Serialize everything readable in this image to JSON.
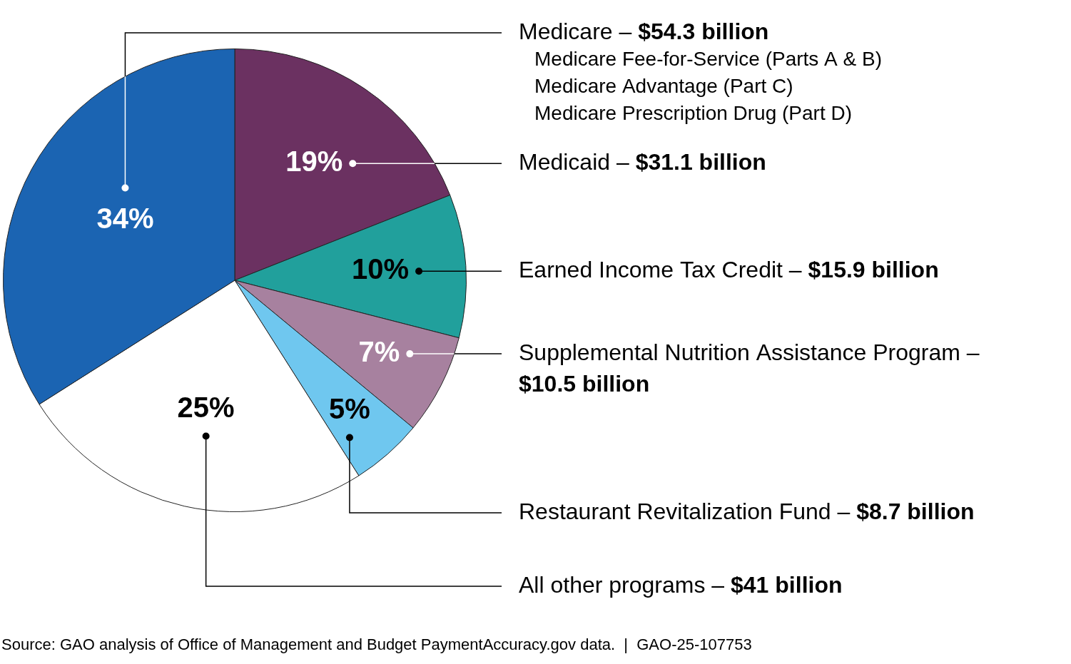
{
  "chart_data": {
    "type": "pie",
    "categories": [
      "Medicaid",
      "Earned Income Tax Credit",
      "Supplemental Nutrition Assistance Program",
      "Restaurant Revitalization Fund",
      "All other programs",
      "Medicare"
    ],
    "values": [
      19,
      10,
      7,
      5,
      25,
      34
    ],
    "value_labels": [
      "19%",
      "10%",
      "7%",
      "5%",
      "25%",
      "34%"
    ],
    "amount_labels": [
      "$31.1 billion",
      "$15.9 billion",
      "$10.5 billion",
      "$8.7 billion",
      "$41 billion",
      "$54.3 billion"
    ],
    "separator": "–",
    "subitems": [
      null,
      null,
      null,
      null,
      null,
      [
        "Medicare Fee-for-Service (Parts A & B)",
        "Medicare Advantage (Part C)",
        "Medicare Prescription Drug (Part D)"
      ]
    ],
    "colors": [
      "#6b3161",
      "#21a09c",
      "#a7819f",
      "#6fc7ef",
      "#ffffff",
      "#1b64b2"
    ],
    "data_labels": true,
    "source": "Source: GAO analysis of Office of Management and Budget PaymentAccuracy.gov data.  |  GAO-25-107753"
  }
}
